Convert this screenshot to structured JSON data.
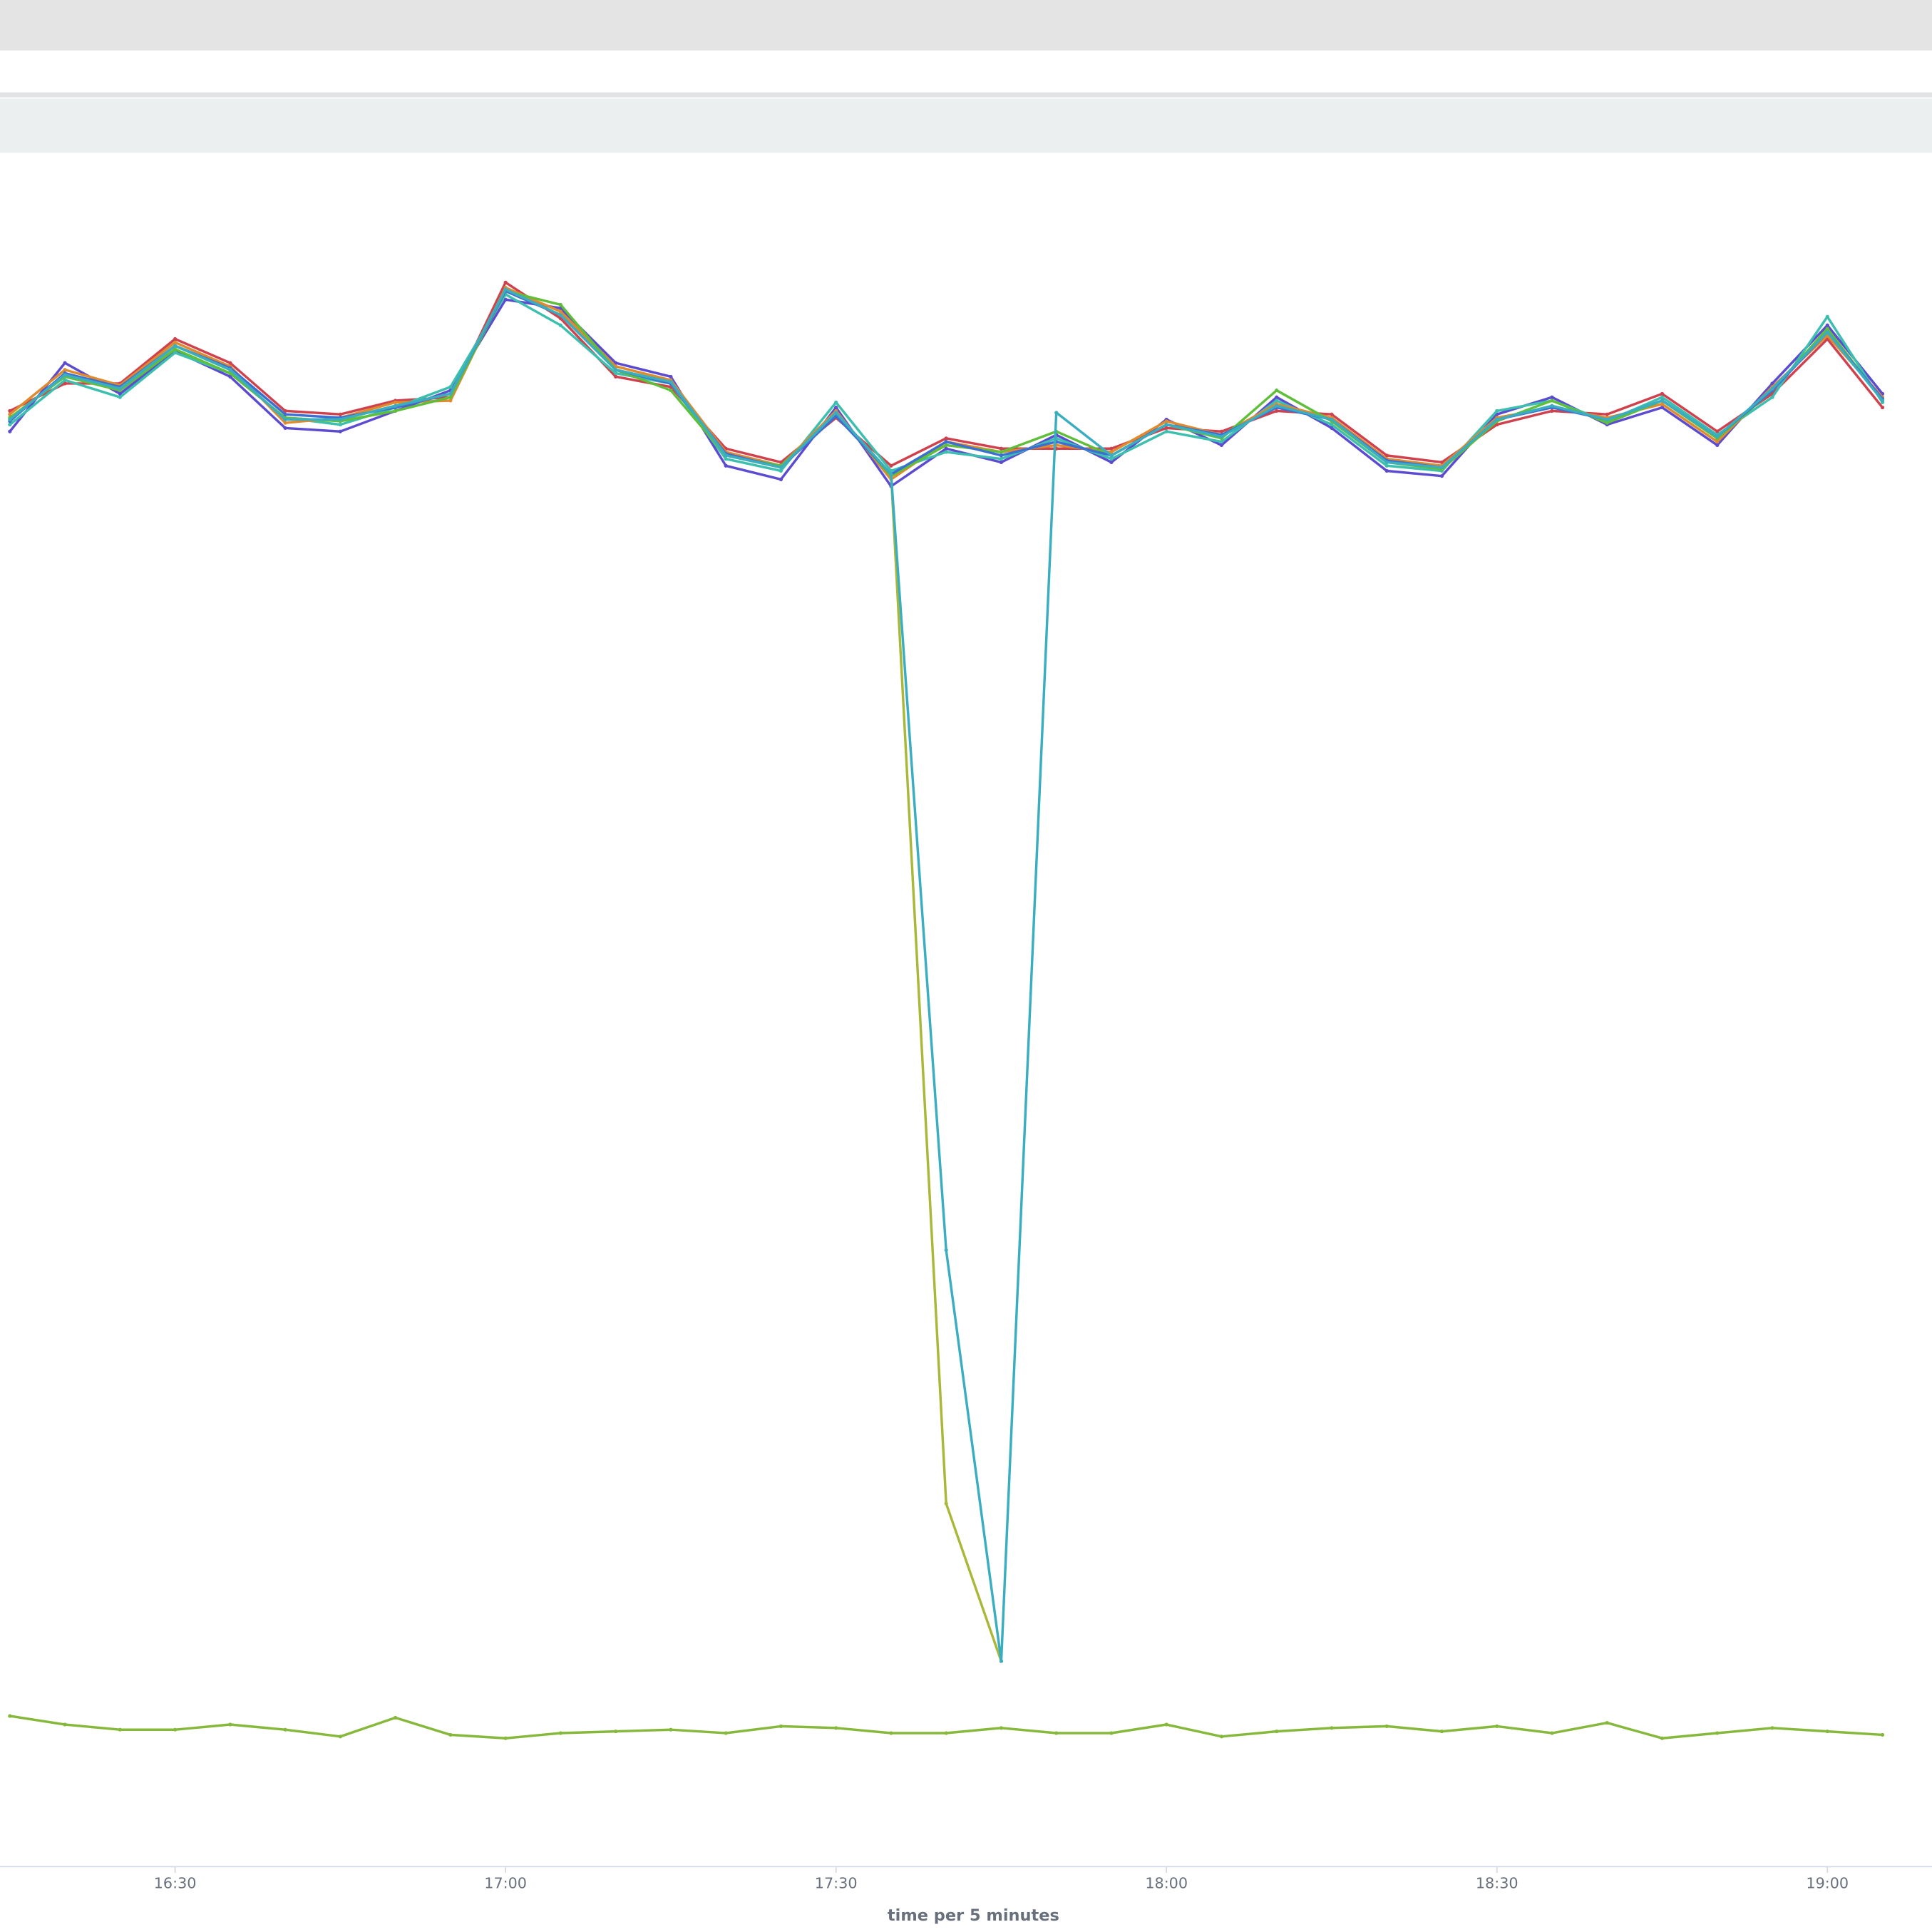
{
  "chart_data": {
    "type": "line",
    "x_label": "time per 5 minutes",
    "x": [
      "16:15",
      "16:20",
      "16:25",
      "16:30",
      "16:35",
      "16:40",
      "16:45",
      "16:50",
      "16:55",
      "17:00",
      "17:05",
      "17:10",
      "17:15",
      "17:20",
      "17:25",
      "17:30",
      "17:35",
      "17:40",
      "17:45",
      "17:50",
      "17:55",
      "18:00",
      "18:05",
      "18:10",
      "18:15",
      "18:20",
      "18:25",
      "18:30",
      "18:35",
      "18:40",
      "18:45",
      "18:50",
      "18:55",
      "19:00",
      "19:05"
    ],
    "xticks": [
      "16:30",
      "17:00",
      "17:30",
      "18:00",
      "18:30",
      "19:00"
    ],
    "ylim": [
      0,
      1000
    ],
    "series": [
      {
        "color": "#5b4bd1",
        "values": [
          838,
          878,
          860,
          885,
          870,
          840,
          838,
          850,
          862,
          915,
          910,
          878,
          870,
          818,
          810,
          852,
          806,
          828,
          820,
          836,
          820,
          845,
          830,
          858,
          840,
          815,
          812,
          848,
          858,
          842,
          852,
          830,
          866,
          900,
          860
        ]
      },
      {
        "color": "#d0414d",
        "values": [
          850,
          866,
          866,
          892,
          878,
          850,
          848,
          856,
          858,
          925,
          904,
          870,
          864,
          828,
          820,
          846,
          818,
          834,
          828,
          828,
          828,
          840,
          838,
          850,
          848,
          824,
          820,
          842,
          850,
          848,
          860,
          838,
          860,
          892,
          852
        ]
      },
      {
        "color": "#3cbfae",
        "values": [
          842,
          868,
          858,
          884,
          872,
          846,
          842,
          852,
          864,
          918,
          900,
          872,
          866,
          822,
          815,
          855,
          815,
          826,
          822,
          834,
          822,
          838,
          832,
          856,
          842,
          818,
          815,
          850,
          856,
          844,
          858,
          836,
          858,
          905,
          855
        ]
      },
      {
        "color": "#e08a2e",
        "values": [
          848,
          874,
          865,
          890,
          876,
          843,
          846,
          855,
          856,
          922,
          908,
          876,
          868,
          826,
          818,
          850,
          810,
          832,
          826,
          830,
          826,
          844,
          836,
          854,
          846,
          822,
          818,
          846,
          852,
          846,
          854,
          832,
          864,
          894,
          858
        ]
      },
      {
        "color": "#5fbf3a",
        "values": [
          846,
          870,
          862,
          886,
          872,
          846,
          844,
          850,
          858,
          920,
          912,
          874,
          862,
          824,
          818,
          848,
          812,
          830,
          826,
          838,
          824,
          842,
          834,
          862,
          844,
          820,
          816,
          844,
          856,
          843,
          856,
          834,
          862,
          898,
          856
        ]
      },
      {
        "color": "#3b6fd4",
        "values": [
          844,
          872,
          864,
          888,
          875,
          848,
          846,
          852,
          860,
          920,
          906,
          874,
          866,
          825,
          817,
          847,
          813,
          832,
          824,
          832,
          824,
          842,
          836,
          852,
          845,
          821,
          817,
          845,
          852,
          845,
          856,
          835,
          862,
          896,
          857
        ]
      },
      {
        "color": "#a9b838",
        "values": [
          845,
          871,
          863,
          888,
          874,
          845,
          845,
          853,
          860,
          921,
          906,
          874,
          867,
          824,
          817,
          849,
          813,
          212,
          120,
          null,
          null,
          null,
          null,
          null,
          null,
          null,
          null,
          null,
          null,
          null,
          null,
          null,
          null,
          null,
          null
        ]
      },
      {
        "color": "#3aaec0",
        "values": [
          845,
          871,
          863,
          888,
          874,
          845,
          845,
          853,
          860,
          921,
          906,
          874,
          867,
          824,
          817,
          849,
          813,
          360,
          120,
          849,
          824,
          842,
          835,
          853,
          845,
          820,
          817,
          845,
          853,
          845,
          856,
          835,
          863,
          896,
          856
        ]
      },
      {
        "color": "#86b83c",
        "values": [
          88,
          83,
          80,
          80,
          83,
          80,
          76,
          87,
          77,
          75,
          78,
          79,
          80,
          78,
          82,
          81,
          78,
          78,
          81,
          78,
          78,
          83,
          76,
          79,
          81,
          82,
          79,
          82,
          78,
          84,
          75,
          78,
          81,
          79,
          77
        ]
      }
    ]
  }
}
